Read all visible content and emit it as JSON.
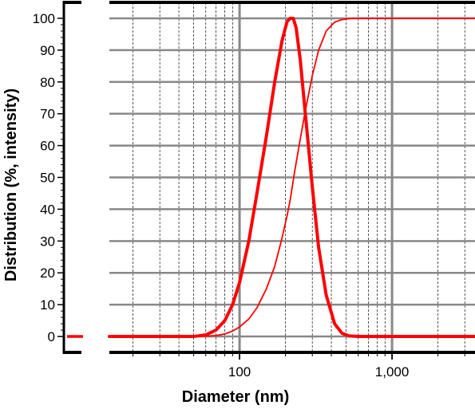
{
  "chart_data": {
    "type": "line",
    "xlabel": "Diameter (nm)",
    "ylabel": "Distribution (%, intensity)",
    "x_scale": "log",
    "xlim": [
      14,
      3500
    ],
    "ylim": [
      -5,
      105
    ],
    "x_ticks": [
      {
        "value": 100,
        "label": "100"
      },
      {
        "value": 1000,
        "label": "1,000"
      }
    ],
    "y_ticks": [
      {
        "value": 0,
        "label": "0"
      },
      {
        "value": 10,
        "label": "10"
      },
      {
        "value": 20,
        "label": "20"
      },
      {
        "value": 30,
        "label": "30"
      },
      {
        "value": 40,
        "label": "40"
      },
      {
        "value": 50,
        "label": "50"
      },
      {
        "value": 60,
        "label": "60"
      },
      {
        "value": 70,
        "label": "70"
      },
      {
        "value": 80,
        "label": "80"
      },
      {
        "value": 90,
        "label": "90"
      },
      {
        "value": 100,
        "label": "100"
      }
    ],
    "grid": true,
    "series": [
      {
        "style": "thick",
        "color": "#ff0000",
        "x": [
          14,
          50,
          60,
          70,
          80,
          90,
          100,
          115,
          130,
          150,
          170,
          190,
          205,
          215,
          225,
          235,
          250,
          270,
          300,
          330,
          370,
          420,
          470,
          520,
          600,
          700,
          3500
        ],
        "y": [
          0,
          0,
          0.5,
          2,
          5,
          10,
          17,
          30,
          45,
          63,
          80,
          93,
          99,
          100,
          100,
          97,
          87,
          70,
          47,
          28,
          13,
          4,
          1,
          0.2,
          0,
          0,
          0
        ]
      },
      {
        "style": "thin",
        "color": "#ff0000",
        "x": [
          14,
          50,
          60,
          70,
          80,
          90,
          100,
          115,
          130,
          150,
          170,
          190,
          205,
          215,
          230,
          250,
          270,
          300,
          330,
          370,
          420,
          470,
          520,
          600,
          700,
          3500
        ],
        "y": [
          0,
          0,
          0.1,
          0.3,
          0.8,
          1.7,
          3,
          5.5,
          9,
          15,
          22,
          31,
          38,
          43,
          52,
          62,
          71,
          82,
          90,
          96,
          98.8,
          99.6,
          99.9,
          100,
          100,
          100
        ]
      }
    ]
  }
}
